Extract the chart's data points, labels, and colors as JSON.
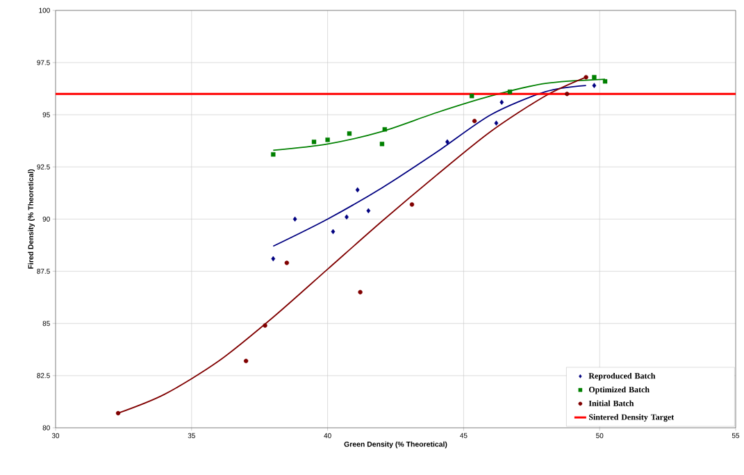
{
  "chart_data": {
    "type": "scatter",
    "xlabel": "Green Density (% Theoretical)",
    "ylabel": "Fired Density (% Theoretical)",
    "xlim": [
      30,
      55
    ],
    "xticks": [
      30,
      35,
      40,
      45,
      50,
      55
    ],
    "ylim": [
      80,
      100
    ],
    "yticks": [
      80,
      82.5,
      85,
      87.5,
      90,
      92.5,
      95,
      97.5,
      100
    ],
    "grid": true,
    "legend": "bottom right",
    "series": [
      {
        "name": "Reproduced Batch",
        "marker": "diamond",
        "color": "#000080",
        "x": [
          38.0,
          38.8,
          40.2,
          40.7,
          41.1,
          41.5,
          44.4,
          46.2,
          46.4,
          49.8
        ],
        "values": [
          88.1,
          90.0,
          89.4,
          90.1,
          91.4,
          90.4,
          93.7,
          94.6,
          95.6,
          96.4
        ]
      },
      {
        "name": "Optimized Batch",
        "marker": "square",
        "color": "#008000",
        "x": [
          38.0,
          39.5,
          40.0,
          40.8,
          42.0,
          42.1,
          45.3,
          46.7,
          49.8,
          50.2
        ],
        "values": [
          93.1,
          93.7,
          93.8,
          94.1,
          93.6,
          94.3,
          95.9,
          96.1,
          96.8,
          96.6
        ]
      },
      {
        "name": "Initial Batch",
        "marker": "circle",
        "color": "#800000",
        "x": [
          32.3,
          37.0,
          37.7,
          38.5,
          41.2,
          43.1,
          45.4,
          48.8,
          49.5
        ],
        "values": [
          80.7,
          83.2,
          84.9,
          87.9,
          86.5,
          90.7,
          94.7,
          96.0,
          96.8
        ]
      },
      {
        "type": "line",
        "marker": "none",
        "color": "#000080",
        "x": [
          38,
          40,
          42,
          44,
          46,
          48,
          49.5
        ],
        "values": [
          88.7,
          90.0,
          91.5,
          93.2,
          95.0,
          96.1,
          96.4
        ]
      },
      {
        "type": "line",
        "marker": "none",
        "color": "#008000",
        "x": [
          38,
          40,
          42,
          44,
          46,
          48,
          50.2
        ],
        "values": [
          93.3,
          93.6,
          94.2,
          95.1,
          95.9,
          96.5,
          96.7
        ]
      },
      {
        "type": "line",
        "marker": "none",
        "color": "#800000",
        "x": [
          32.3,
          34,
          36,
          38,
          40,
          42,
          44,
          46,
          48,
          49.5
        ],
        "values": [
          80.7,
          81.6,
          83.2,
          85.3,
          87.6,
          89.9,
          92.1,
          94.2,
          95.9,
          96.8
        ]
      }
    ],
    "ref_lines": [
      {
        "axis": "y",
        "value": 96,
        "label": "Sintered Density Target",
        "color": "#ff0000"
      }
    ]
  }
}
